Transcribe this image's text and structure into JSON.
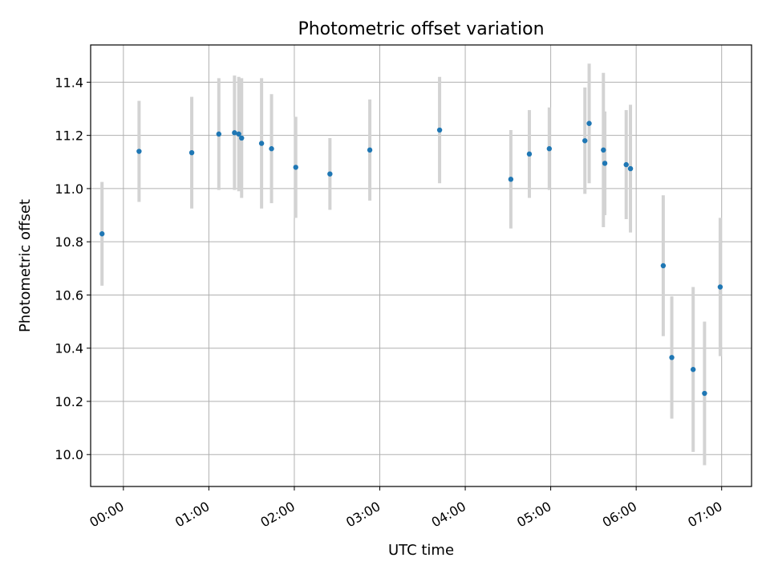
{
  "chart_data": {
    "type": "scatter",
    "title": "Photometric offset variation",
    "xlabel": "UTC time",
    "ylabel": "Photometric offset",
    "grid": true,
    "x_axis": {
      "range": [
        "23:37",
        "07:21"
      ],
      "ticks": [
        "00:00",
        "01:00",
        "02:00",
        "03:00",
        "04:00",
        "05:00",
        "06:00",
        "07:00"
      ]
    },
    "y_axis": {
      "range": [
        9.88,
        11.54
      ],
      "ticks": [
        10.0,
        10.2,
        10.4,
        10.6,
        10.8,
        11.0,
        11.2,
        11.4
      ],
      "tick_labels": [
        "10.0",
        "10.2",
        "10.4",
        "10.6",
        "10.8",
        "11.0",
        "11.2",
        "11.4"
      ]
    },
    "colors": {
      "point": "#1f77b4",
      "errorbar": "#d3d3d3",
      "grid": "#b0b0b0"
    },
    "points": [
      {
        "time": "23:45",
        "y": 10.83,
        "err": 0.195
      },
      {
        "time": "00:11",
        "y": 11.14,
        "err": 0.19
      },
      {
        "time": "00:48",
        "y": 11.135,
        "err": 0.21
      },
      {
        "time": "01:07",
        "y": 11.205,
        "err": 0.21
      },
      {
        "time": "01:18",
        "y": 11.21,
        "err": 0.215
      },
      {
        "time": "01:21",
        "y": 11.205,
        "err": 0.215
      },
      {
        "time": "01:23",
        "y": 11.19,
        "err": 0.225
      },
      {
        "time": "01:37",
        "y": 11.17,
        "err": 0.245
      },
      {
        "time": "01:44",
        "y": 11.15,
        "err": 0.205
      },
      {
        "time": "02:01",
        "y": 11.08,
        "err": 0.19
      },
      {
        "time": "02:25",
        "y": 11.055,
        "err": 0.135
      },
      {
        "time": "02:53",
        "y": 11.145,
        "err": 0.19
      },
      {
        "time": "03:42",
        "y": 11.22,
        "err": 0.2
      },
      {
        "time": "04:32",
        "y": 11.035,
        "err": 0.185
      },
      {
        "time": "04:45",
        "y": 11.13,
        "err": 0.165
      },
      {
        "time": "04:59",
        "y": 11.15,
        "err": 0.155
      },
      {
        "time": "05:24",
        "y": 11.18,
        "err": 0.2
      },
      {
        "time": "05:27",
        "y": 11.245,
        "err": 0.225
      },
      {
        "time": "05:37",
        "y": 11.145,
        "err": 0.29
      },
      {
        "time": "05:38",
        "y": 11.095,
        "err": 0.195
      },
      {
        "time": "05:53",
        "y": 11.09,
        "err": 0.205
      },
      {
        "time": "05:56",
        "y": 11.075,
        "err": 0.24
      },
      {
        "time": "06:19",
        "y": 10.71,
        "err": 0.265
      },
      {
        "time": "06:25",
        "y": 10.365,
        "err": 0.23
      },
      {
        "time": "06:40",
        "y": 10.32,
        "err": 0.31
      },
      {
        "time": "06:48",
        "y": 10.23,
        "err": 0.27
      },
      {
        "time": "06:59",
        "y": 10.63,
        "err": 0.26
      }
    ]
  }
}
